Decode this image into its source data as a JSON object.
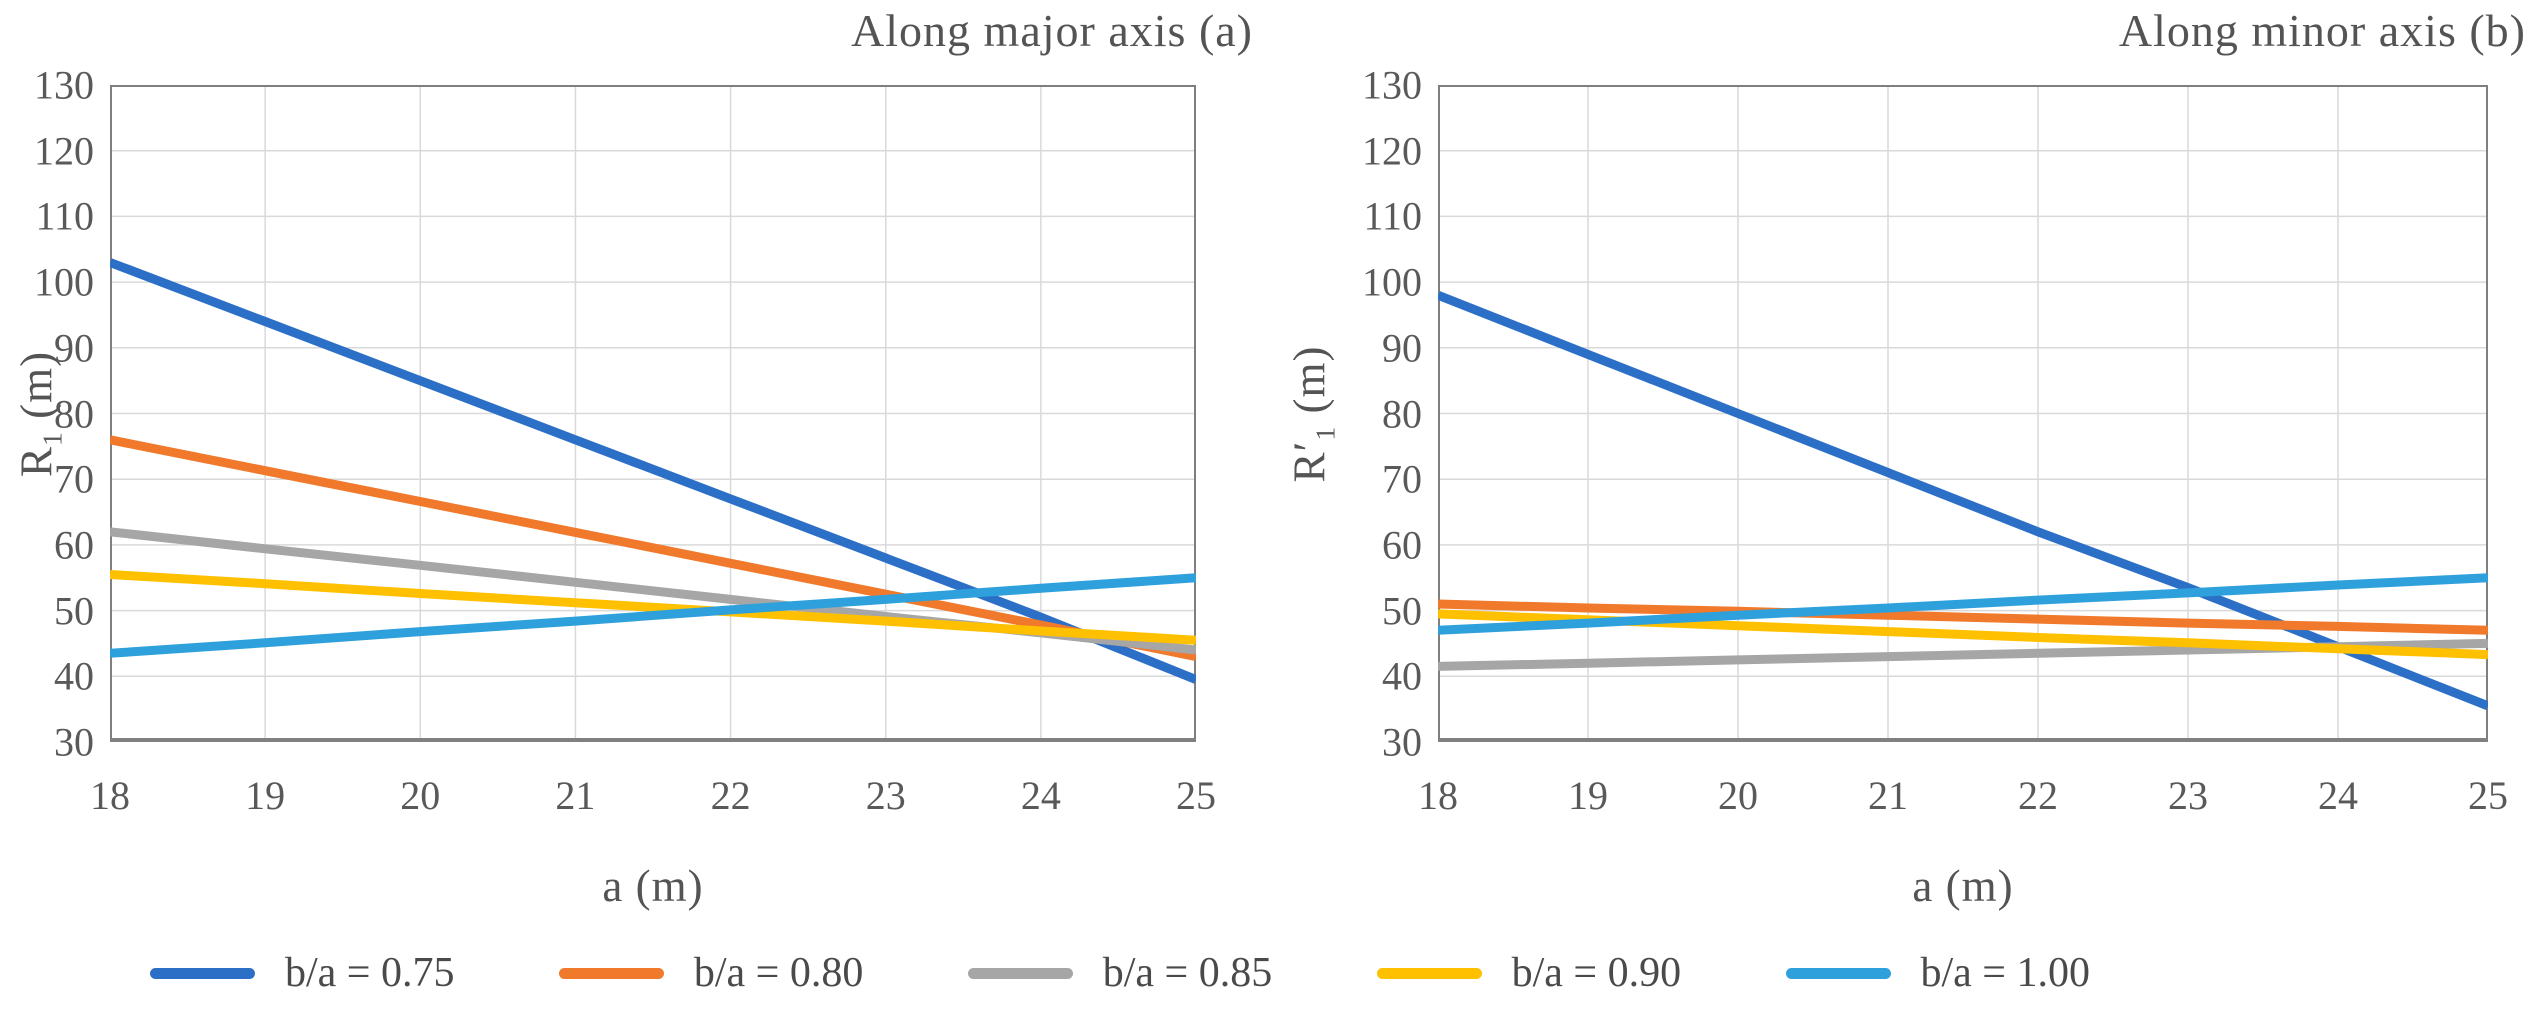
{
  "figure": {
    "background": "#ffffff",
    "text_color": "#595959",
    "grid_color": "#d9d9d9",
    "border_color": "#7f7f7f",
    "axis_line_color": "#808080"
  },
  "legend": {
    "position": "bottom"
  },
  "chart_data": [
    {
      "type": "line",
      "title": "Along major axis (a)",
      "xlabel": "a (m)",
      "ylabel": "R1 (m)",
      "ylabel_parts": {
        "main": "R",
        "sub": "1",
        "unit": " (m)"
      },
      "x": [
        18,
        19,
        20,
        21,
        22,
        23,
        24,
        25
      ],
      "xlim": [
        18,
        25
      ],
      "ylim": [
        30,
        130
      ],
      "ytick_step": 10,
      "yticks": [
        30,
        40,
        50,
        60,
        70,
        80,
        90,
        100,
        110,
        120,
        130
      ],
      "grid": true,
      "series": [
        {
          "name": "b/a = 0.75",
          "color": "#2c6fc6",
          "values": [
            103,
            94,
            85,
            76,
            67,
            58,
            49,
            39.5
          ]
        },
        {
          "name": "b/a = 0.80",
          "color": "#f0792b",
          "values": [
            76,
            71.3,
            66.6,
            61.9,
            57.2,
            52.5,
            47.8,
            43
          ]
        },
        {
          "name": "b/a = 0.85",
          "color": "#a6a6a6",
          "values": [
            62,
            59.4,
            56.9,
            54.3,
            51.7,
            49.1,
            46.6,
            44
          ]
        },
        {
          "name": "b/a = 0.90",
          "color": "#ffc000",
          "values": [
            55.5,
            54.1,
            52.6,
            51.2,
            49.8,
            48.4,
            46.9,
            45.5
          ]
        },
        {
          "name": "b/a = 1.00",
          "color": "#2ea1dc",
          "values": [
            43.5,
            45.1,
            46.8,
            48.4,
            50.1,
            51.7,
            53.4,
            55
          ]
        }
      ]
    },
    {
      "type": "line",
      "title": "Along minor axis (b)",
      "xlabel": "a (m)",
      "ylabel": "R'1 (m)",
      "ylabel_parts": {
        "main": "R′",
        "sub": "1",
        "unit": " (m)"
      },
      "x": [
        18,
        19,
        20,
        21,
        22,
        23,
        24,
        25
      ],
      "xlim": [
        18,
        25
      ],
      "ylim": [
        30,
        130
      ],
      "ytick_step": 10,
      "yticks": [
        30,
        40,
        50,
        60,
        70,
        80,
        90,
        100,
        110,
        120,
        130
      ],
      "grid": true,
      "series": [
        {
          "name": "b/a = 0.75",
          "color": "#2c6fc6",
          "values": [
            98,
            89,
            80,
            71,
            62,
            53.5,
            44.5,
            35.5
          ]
        },
        {
          "name": "b/a = 0.80",
          "color": "#f0792b",
          "values": [
            51,
            50.4,
            49.9,
            49.3,
            48.7,
            48.1,
            47.6,
            47
          ]
        },
        {
          "name": "b/a = 0.85",
          "color": "#a6a6a6",
          "values": [
            41.5,
            42,
            42.5,
            43,
            43.5,
            44,
            44.5,
            45
          ]
        },
        {
          "name": "b/a = 0.90",
          "color": "#ffc000",
          "values": [
            49.5,
            48.6,
            47.7,
            46.8,
            45.9,
            45.1,
            44.2,
            43.3
          ]
        },
        {
          "name": "b/a = 1.00",
          "color": "#2ea1dc",
          "values": [
            47,
            48.1,
            49.3,
            50.4,
            51.6,
            52.7,
            53.9,
            55
          ]
        }
      ]
    }
  ]
}
